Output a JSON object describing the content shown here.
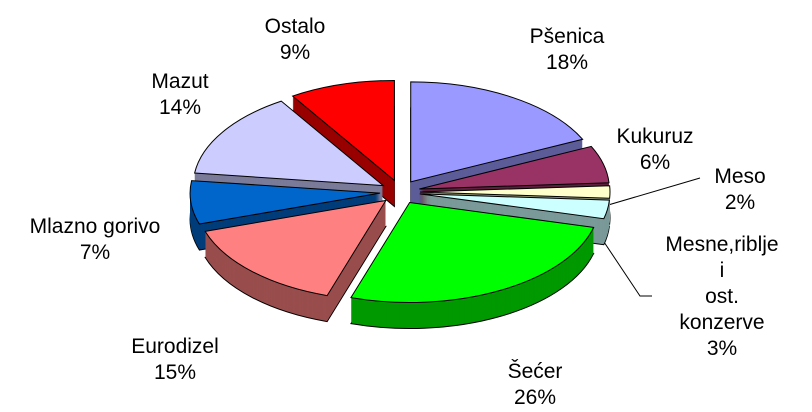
{
  "chart_data": {
    "type": "pie",
    "categories": [
      "Pšenica",
      "Kukuruz",
      "Meso",
      "Mesne,riblje i\nost. konzerve",
      "Šećer",
      "Eurodizel",
      "Mlazno gorivo",
      "Mazut",
      "Ostalo"
    ],
    "values": [
      18,
      6,
      2,
      3,
      26,
      15,
      7,
      14,
      9
    ],
    "value_labels": [
      "18%",
      "6%",
      "2%",
      "3%",
      "26%",
      "15%",
      "7%",
      "14%",
      "9%"
    ],
    "colors": [
      "#9999ff",
      "#993366",
      "#ffffcc",
      "#ccffff",
      "#00ff00",
      "#ff8080",
      "#0066cc",
      "#ccccff",
      "#ff0000"
    ]
  }
}
